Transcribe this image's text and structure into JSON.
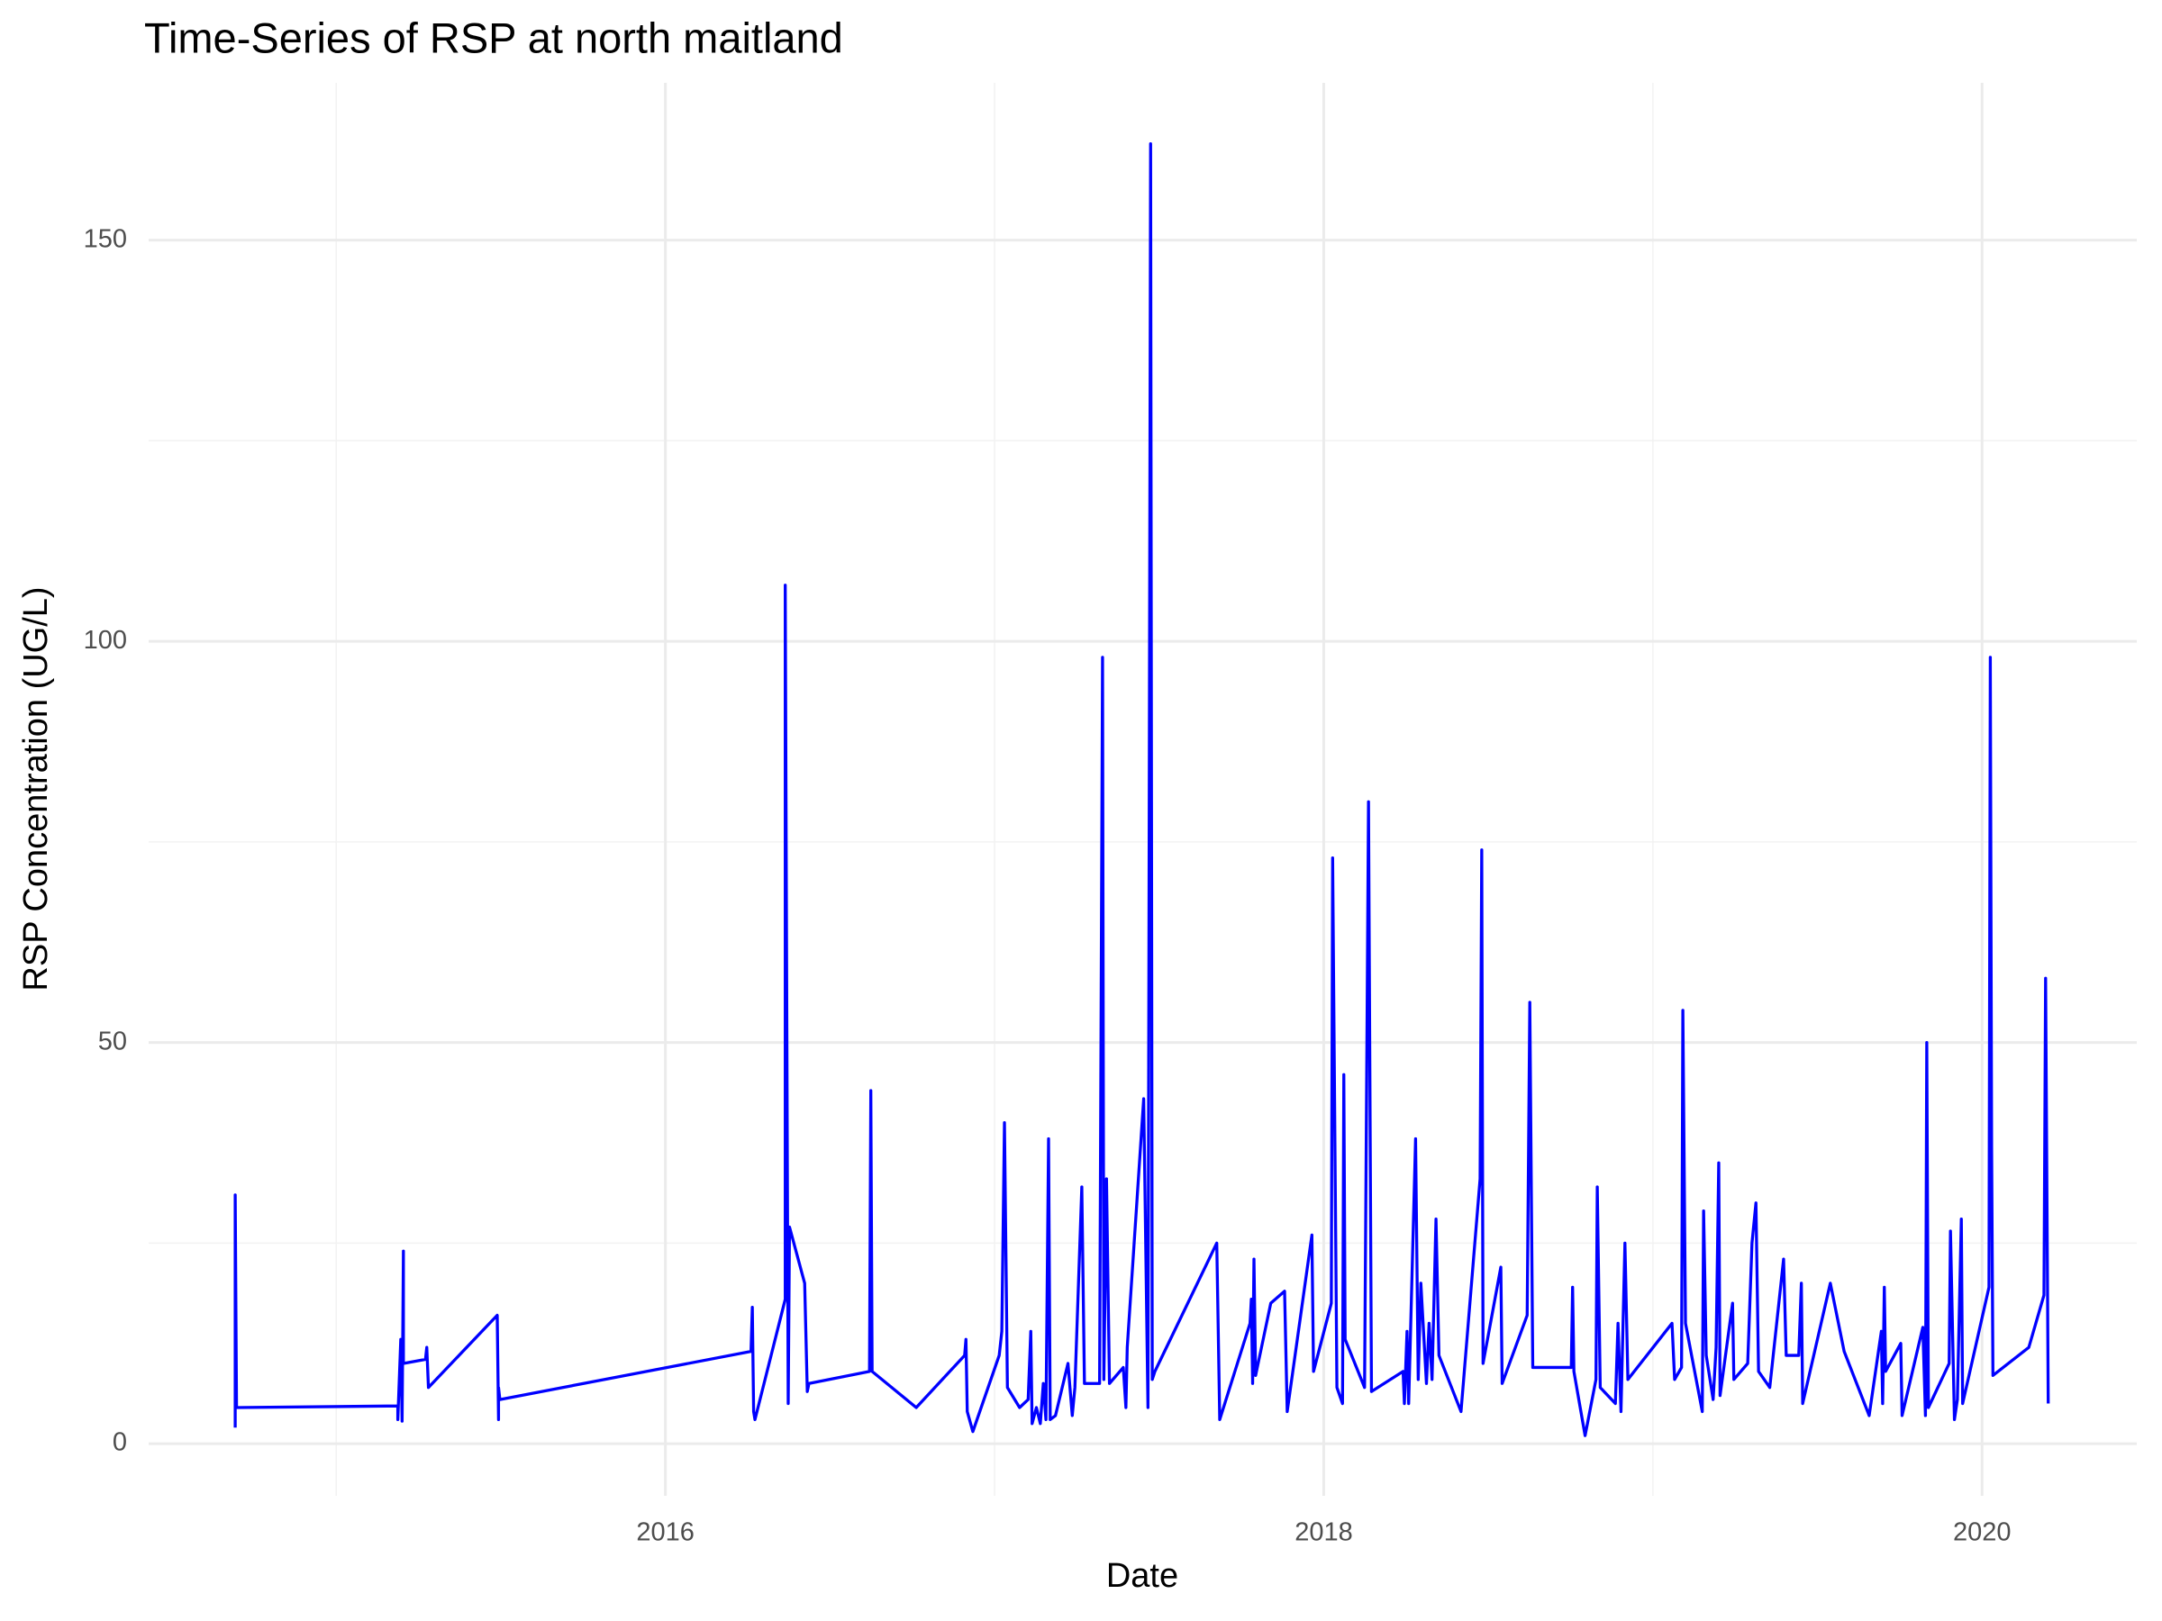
{
  "chart_data": {
    "type": "line",
    "title": "Time-Series of RSP at north maitland",
    "x_label": "Date",
    "y_label": "RSP Concentration (UG/L)",
    "xlim": [
      2014.43,
      2020.47
    ],
    "xticks": [
      2016,
      2018,
      2020
    ],
    "ylim": [
      -6.5,
      169.6
    ],
    "yticks": [
      0,
      50,
      100,
      150
    ],
    "grid": true,
    "x": [
      2014.693,
      2014.693,
      2014.697,
      2015.187,
      2015.187,
      2015.196,
      2015.2,
      2015.204,
      2015.204,
      2015.271,
      2015.275,
      2015.28,
      2015.489,
      2015.493,
      2015.493,
      2015.497,
      2016.26,
      2016.264,
      2016.268,
      2016.272,
      2016.364,
      2016.364,
      2016.373,
      2016.377,
      2016.423,
      2016.431,
      2016.436,
      2016.62,
      2016.624,
      2016.628,
      2016.762,
      2016.909,
      2016.913,
      2016.917,
      2016.934,
      2017.014,
      2017.022,
      2017.03,
      2017.039,
      2017.076,
      2017.102,
      2017.11,
      2017.114,
      2017.127,
      2017.139,
      2017.148,
      2017.156,
      2017.164,
      2017.169,
      2017.185,
      2017.223,
      2017.236,
      2017.244,
      2017.265,
      2017.273,
      2017.319,
      2017.328,
      2017.332,
      2017.34,
      2017.349,
      2017.391,
      2017.399,
      2017.403,
      2017.453,
      2017.466,
      2017.474,
      2017.479,
      2017.487,
      2017.675,
      2017.684,
      2017.776,
      2017.78,
      2017.784,
      2017.788,
      2017.793,
      2017.839,
      2017.881,
      2017.889,
      2017.964,
      2017.969,
      2018.023,
      2018.027,
      2018.04,
      2018.057,
      2018.061,
      2018.065,
      2018.124,
      2018.132,
      2018.136,
      2018.145,
      2018.241,
      2018.245,
      2018.253,
      2018.258,
      2018.279,
      2018.287,
      2018.295,
      2018.312,
      2018.32,
      2018.329,
      2018.341,
      2018.35,
      2018.417,
      2018.475,
      2018.48,
      2018.484,
      2018.538,
      2018.542,
      2018.618,
      2018.626,
      2018.635,
      2018.752,
      2018.756,
      2018.76,
      2018.794,
      2018.827,
      2018.831,
      2018.84,
      2018.886,
      2018.894,
      2018.903,
      2018.915,
      2018.924,
      2019.058,
      2019.066,
      2019.087,
      2019.091,
      2019.099,
      2019.15,
      2019.154,
      2019.162,
      2019.183,
      2019.192,
      2019.2,
      2019.204,
      2019.242,
      2019.246,
      2019.288,
      2019.301,
      2019.313,
      2019.321,
      2019.355,
      2019.397,
      2019.405,
      2019.443,
      2019.451,
      2019.455,
      2019.539,
      2019.581,
      2019.657,
      2019.694,
      2019.698,
      2019.703,
      2019.707,
      2019.753,
      2019.757,
      2019.82,
      2019.828,
      2019.832,
      2019.837,
      2019.9,
      2019.904,
      2019.916,
      2019.925,
      2019.937,
      2019.941,
      2020.021,
      2020.025,
      2020.029,
      2020.033,
      2020.142,
      2020.188,
      2020.193,
      2020.201
    ],
    "series": [
      {
        "name": "RSP",
        "color": "#0000ff",
        "values": [
          2,
          31,
          4.5,
          4.7,
          3,
          13,
          2.8,
          24,
          10,
          10.5,
          12,
          7,
          16,
          3,
          7,
          5.5,
          11.5,
          17,
          4,
          3,
          18,
          107,
          5,
          27,
          20,
          6.5,
          7.5,
          9,
          44,
          9,
          4.5,
          11,
          13,
          4,
          1.5,
          11,
          14,
          40,
          7,
          4.5,
          5.5,
          14,
          2.5,
          4.5,
          2.5,
          7.5,
          3,
          38,
          3,
          3.5,
          10,
          3.5,
          7,
          32,
          7.5,
          7.5,
          98,
          8,
          33,
          7.5,
          9.5,
          4.5,
          12,
          43,
          4.5,
          162,
          8,
          9,
          25,
          3,
          15,
          18,
          7.5,
          23,
          8.5,
          17.5,
          19,
          4,
          26,
          9,
          17.5,
          73,
          7,
          5,
          46,
          13,
          7,
          55,
          80,
          6.5,
          9,
          5,
          14,
          5,
          38,
          8,
          20,
          7.5,
          15,
          8,
          28,
          11,
          4,
          33,
          74,
          10,
          22,
          7.5,
          16,
          55,
          9.5,
          9.5,
          19.5,
          9,
          1,
          8,
          32,
          7,
          5,
          15,
          4,
          25,
          8,
          15,
          8,
          9.5,
          54,
          15,
          4,
          29,
          11,
          5.5,
          12,
          35,
          6,
          17.5,
          8,
          10,
          25,
          30,
          9,
          7,
          23,
          11,
          11,
          20,
          5,
          20,
          11.5,
          3.5,
          14,
          5,
          19.5,
          9,
          12.5,
          3.5,
          14.5,
          3.5,
          50,
          4.5,
          10,
          26.5,
          3,
          5.5,
          28,
          5,
          19.5,
          98,
          37,
          8.5,
          12,
          18.5,
          58,
          5
        ]
      }
    ]
  }
}
